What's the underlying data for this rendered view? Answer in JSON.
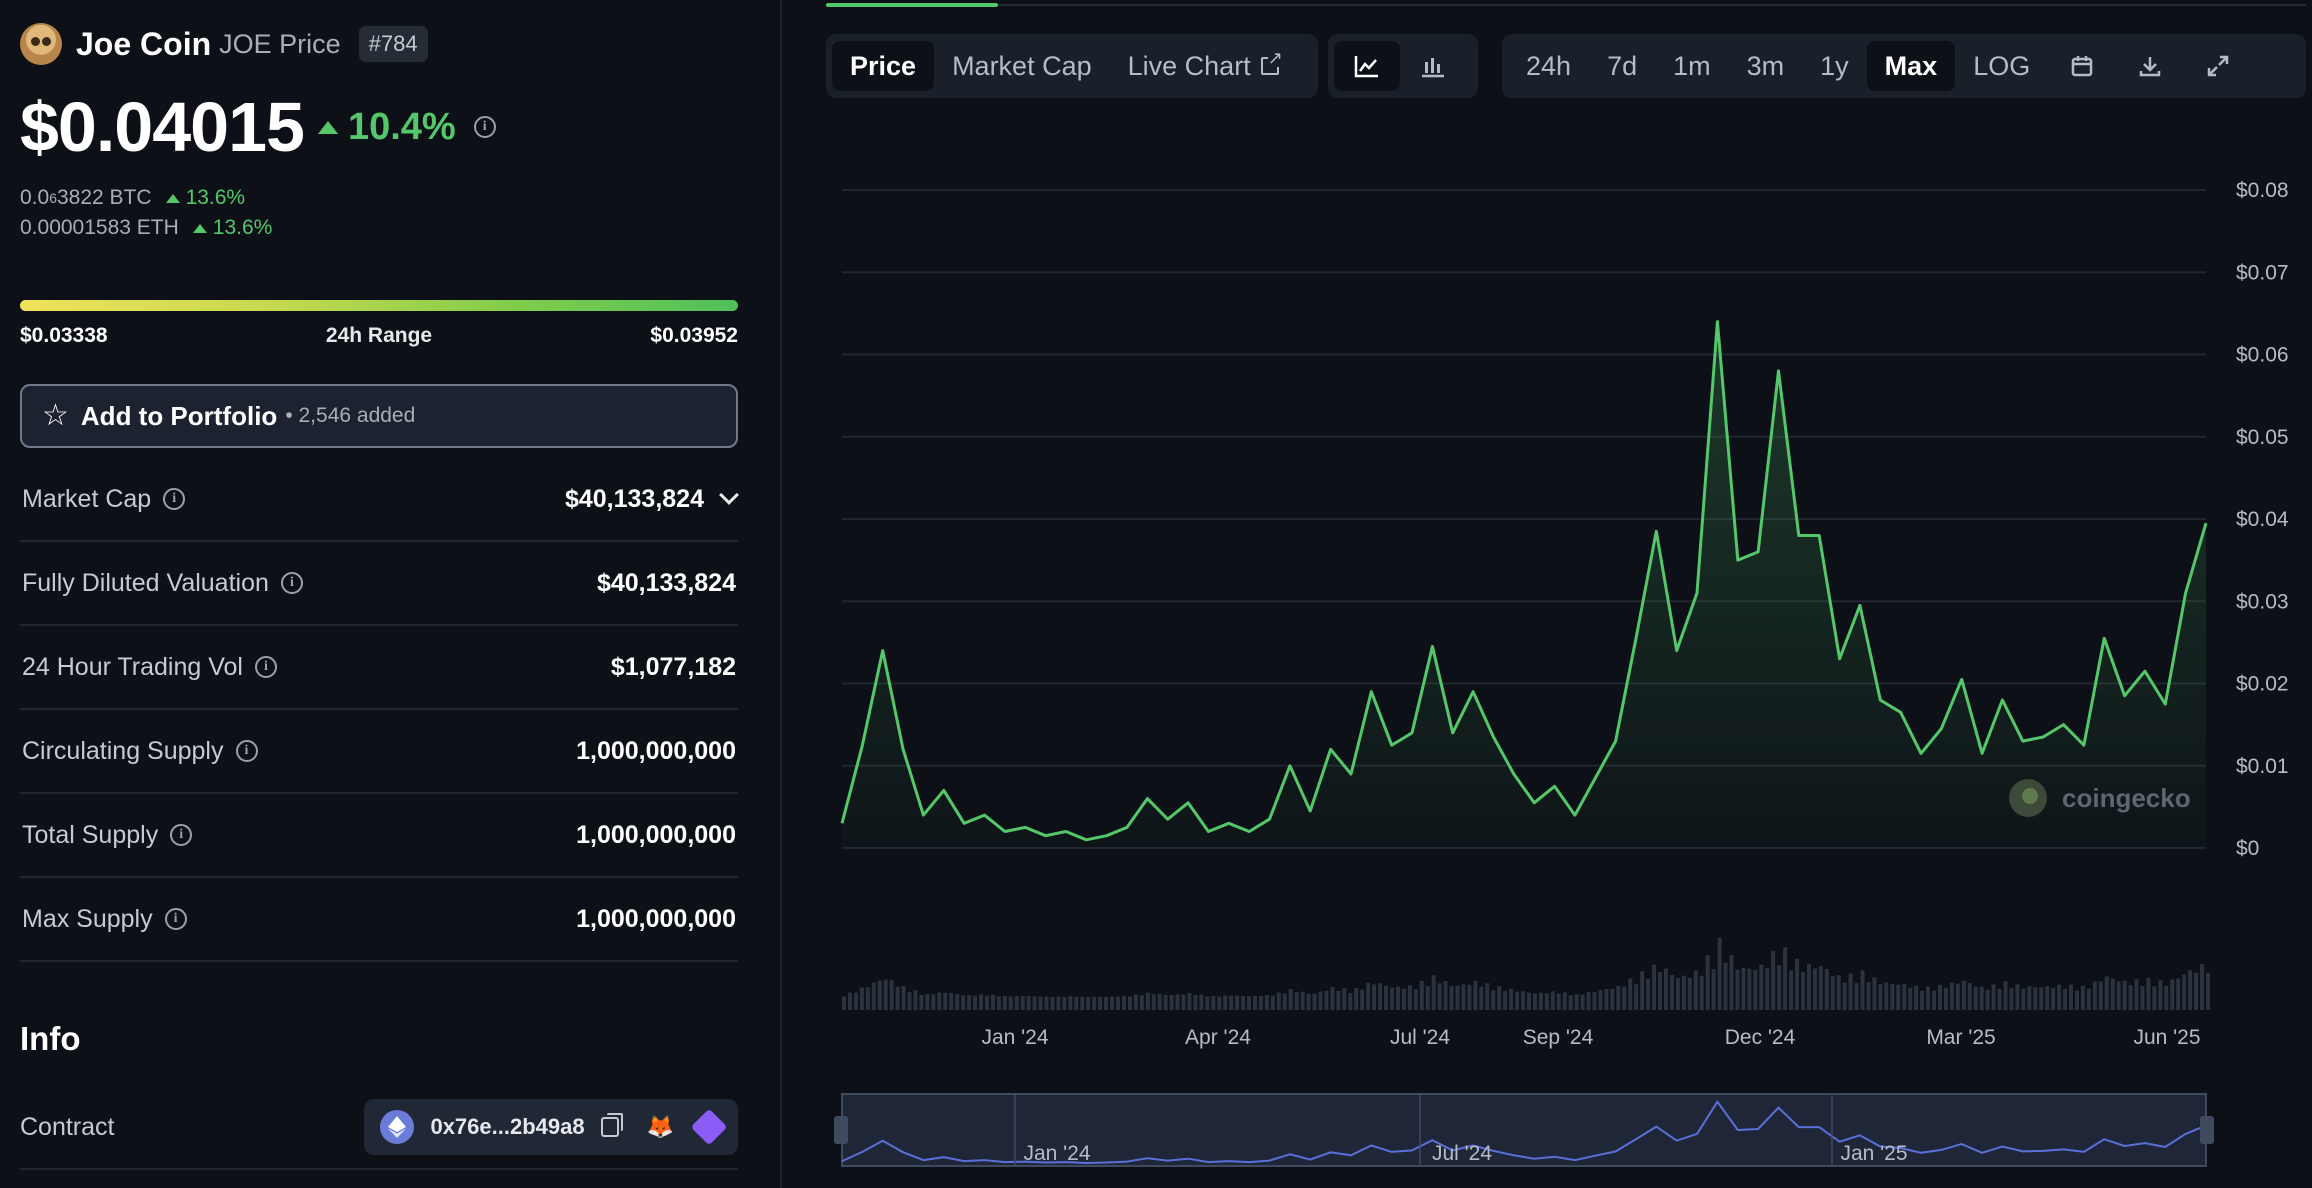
{
  "coin": {
    "name": "Joe Coin",
    "subtitle": "JOE Price",
    "rank": "#784",
    "price": "$0.04015",
    "change_24h": "10.4%",
    "btc_prefix": "0.0",
    "btc_sub": "6",
    "btc_rest": "3822 BTC",
    "btc_change": "13.6%",
    "eth_price": "0.00001583 ETH",
    "eth_change": "13.6%"
  },
  "range": {
    "low": "$0.03338",
    "label": "24h Range",
    "high": "$0.03952"
  },
  "portfolio": {
    "label": "Add to Portfolio",
    "count": "• 2,546 added"
  },
  "stats": [
    {
      "label": "Market Cap",
      "value": "$40,133,824"
    },
    {
      "label": "Fully Diluted Valuation",
      "value": "$40,133,824"
    },
    {
      "label": "24 Hour Trading Vol",
      "value": "$1,077,182"
    },
    {
      "label": "Circulating Supply",
      "value": "1,000,000,000"
    },
    {
      "label": "Total Supply",
      "value": "1,000,000,000"
    },
    {
      "label": "Max Supply",
      "value": "1,000,000,000"
    }
  ],
  "info": {
    "title": "Info",
    "contract_label": "Contract",
    "contract_address": "0x76e...2b49a8"
  },
  "toolbar": {
    "tabs": [
      "Price",
      "Market Cap",
      "Live Chart"
    ],
    "active_tab": "Price",
    "ranges": [
      "24h",
      "7d",
      "1m",
      "3m",
      "1y",
      "Max",
      "LOG"
    ],
    "active_range": "Max"
  },
  "icons": {
    "line_chart": "line-chart-icon",
    "candle_chart": "candlestick-chart-icon",
    "calendar": "calendar-icon",
    "download": "download-icon",
    "fullscreen": "fullscreen-icon",
    "external": "external-link-icon"
  },
  "watermark": "coingecko",
  "colors": {
    "accent_green": "#54c76a",
    "background": "#0d1117",
    "panel": "#1a202a"
  },
  "chart_data": {
    "type": "line",
    "yticks": [
      "$0",
      "$0.01",
      "$0.02",
      "$0.03",
      "$0.04",
      "$0.05",
      "$0.06",
      "$0.07",
      "$0.08"
    ],
    "ylim": [
      0,
      0.08
    ],
    "xticks": [
      "Jan '24",
      "Apr '24",
      "Jul '24",
      "Sep '24",
      "Dec '24",
      "Mar '25",
      "Jun '25"
    ],
    "navigator_xticks": [
      "Jan '24",
      "Jul '24",
      "Jan '25"
    ],
    "x": [
      "2023-10",
      "2023-10",
      "2023-10",
      "2023-11",
      "2023-11",
      "2023-11",
      "2023-11",
      "2023-12",
      "2023-12",
      "2023-12",
      "2023-12",
      "2024-01",
      "2024-01",
      "2024-01",
      "2024-02",
      "2024-02",
      "2024-02",
      "2024-03",
      "2024-03",
      "2024-03",
      "2024-04",
      "2024-04",
      "2024-04",
      "2024-05",
      "2024-05",
      "2024-05",
      "2024-06",
      "2024-06",
      "2024-06",
      "2024-07",
      "2024-07",
      "2024-07",
      "2024-08",
      "2024-08",
      "2024-08",
      "2024-09",
      "2024-09",
      "2024-09",
      "2024-10",
      "2024-10",
      "2024-10",
      "2024-11",
      "2024-11",
      "2024-11",
      "2024-11",
      "2024-11",
      "2024-12",
      "2024-12",
      "2024-12",
      "2024-12",
      "2025-01",
      "2025-01",
      "2025-01",
      "2025-02",
      "2025-02",
      "2025-02",
      "2025-03",
      "2025-03",
      "2025-03",
      "2025-04",
      "2025-04",
      "2025-04",
      "2025-05",
      "2025-05",
      "2025-05",
      "2025-06",
      "2025-06",
      "2025-06"
    ],
    "series": [
      {
        "values": [
          0.003,
          0.0125,
          0.024,
          0.012,
          0.004,
          0.007,
          0.003,
          0.004,
          0.002,
          0.0025,
          0.0015,
          0.002,
          0.001,
          0.0015,
          0.0025,
          0.006,
          0.0035,
          0.0055,
          0.002,
          0.003,
          0.002,
          0.0035,
          0.01,
          0.0045,
          0.012,
          0.009,
          0.019,
          0.0125,
          0.014,
          0.0245,
          0.014,
          0.019,
          0.0135,
          0.009,
          0.0055,
          0.0075,
          0.004,
          0.0085,
          0.013,
          0.0255,
          0.0385,
          0.024,
          0.031,
          0.064,
          0.035,
          0.036,
          0.058,
          0.038,
          0.038,
          0.023,
          0.0295,
          0.018,
          0.0165,
          0.0115,
          0.0145,
          0.0205,
          0.0115,
          0.018,
          0.013,
          0.0135,
          0.015,
          0.0125,
          0.0255,
          0.0185,
          0.0215,
          0.0175,
          0.031,
          0.0395
        ]
      }
    ]
  }
}
